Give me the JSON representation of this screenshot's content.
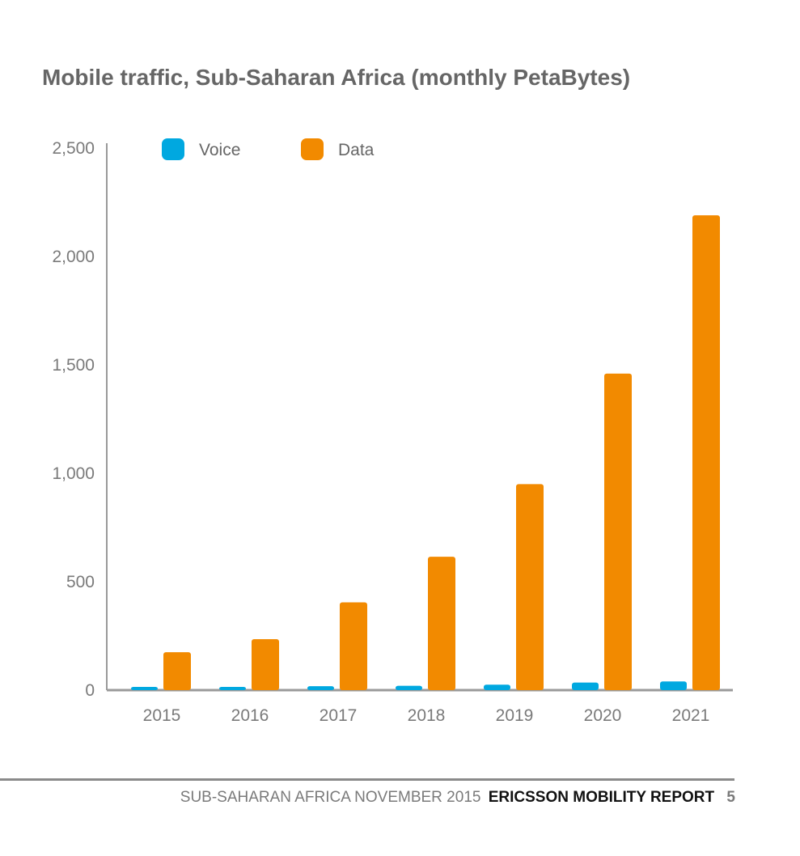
{
  "chart_data": {
    "type": "bar",
    "title": "Mobile traffic, Sub-Saharan Africa (monthly PetaBytes)",
    "categories": [
      "2015",
      "2016",
      "2017",
      "2018",
      "2019",
      "2020",
      "2021"
    ],
    "series": [
      {
        "name": "Voice",
        "color": "#00a8e0",
        "values": [
          15,
          15,
          18,
          20,
          25,
          35,
          40
        ]
      },
      {
        "name": "Data",
        "color": "#f28a00",
        "values": [
          175,
          235,
          405,
          615,
          950,
          1460,
          2190
        ]
      }
    ],
    "ylim": [
      0,
      2500
    ],
    "yticks": [
      0,
      500,
      1000,
      1500,
      2000,
      2500
    ],
    "ytick_labels": [
      "0",
      "500",
      "1,000",
      "1,500",
      "2,000",
      "2,500"
    ],
    "xlabel": "",
    "ylabel": "",
    "legend_position": "top-left",
    "grid": false
  },
  "footer": {
    "section": "SUB-SAHARAN AFRICA NOVEMBER 2015",
    "publication": "ERICSSON MOBILITY REPORT",
    "page": "5"
  }
}
